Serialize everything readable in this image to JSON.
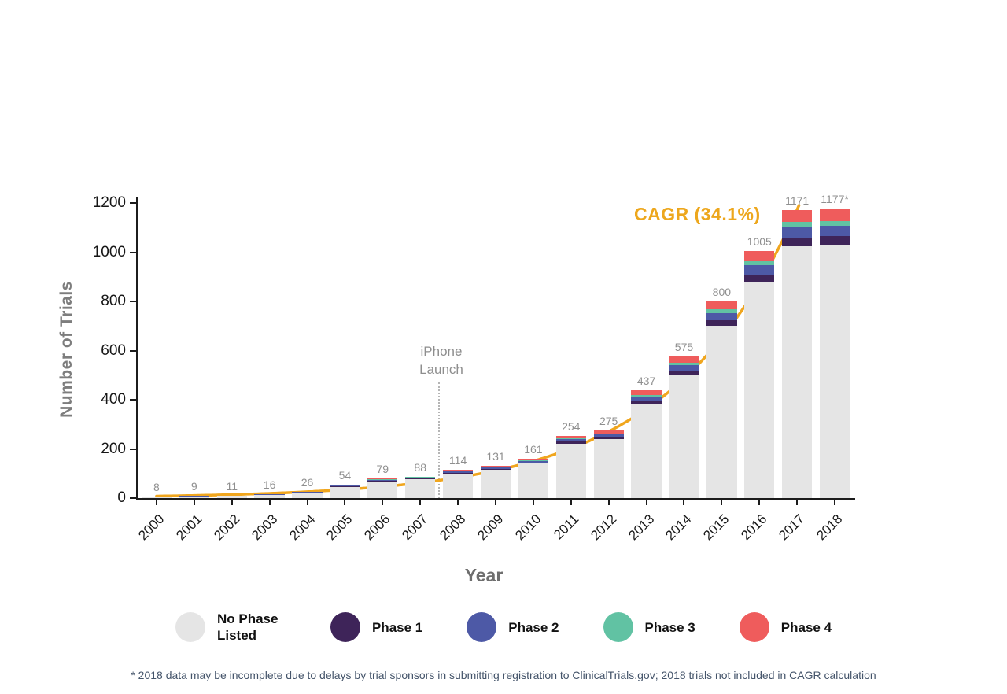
{
  "chart_data": {
    "type": "bar",
    "stacked": true,
    "title": "",
    "xlabel": "Year",
    "ylabel": "Number of Trials",
    "ylim": [
      0,
      1200
    ],
    "yticks": [
      0,
      200,
      400,
      600,
      800,
      1000,
      1200
    ],
    "grid": false,
    "legend_position": "bottom",
    "categories": [
      "2000",
      "2001",
      "2002",
      "2003",
      "2004",
      "2005",
      "2006",
      "2007",
      "2008",
      "2009",
      "2010",
      "2011",
      "2012",
      "2013",
      "2014",
      "2015",
      "2016",
      "2017",
      "2018"
    ],
    "totals": [
      8,
      9,
      11,
      16,
      26,
      54,
      79,
      88,
      114,
      131,
      161,
      254,
      275,
      437,
      575,
      800,
      1005,
      1171,
      1177
    ],
    "total_labels": [
      "8",
      "9",
      "11",
      "16",
      "26",
      "54",
      "79",
      "88",
      "114",
      "131",
      "161",
      "254",
      "275",
      "437",
      "575",
      "800",
      "1005",
      "1171",
      "1177*"
    ],
    "series": [
      {
        "name": "No Phase Listed",
        "color": "#e5e5e5",
        "values": [
          6,
          7,
          9,
          13,
          22,
          46,
          68,
          76,
          99,
          114,
          140,
          221,
          240,
          382,
          503,
          700,
          880,
          1025,
          1030
        ]
      },
      {
        "name": "Phase 1",
        "color": "#3e2459",
        "values": [
          1,
          1,
          1,
          1,
          1,
          2,
          3,
          3,
          4,
          4,
          5,
          8,
          8,
          13,
          17,
          24,
          30,
          35,
          35
        ]
      },
      {
        "name": "Phase 2",
        "color": "#4d59a6",
        "values": [
          1,
          1,
          1,
          1,
          2,
          3,
          4,
          4,
          5,
          6,
          7,
          10,
          11,
          16,
          21,
          29,
          36,
          42,
          42
        ]
      },
      {
        "name": "Phase 3",
        "color": "#61c2a3",
        "values": [
          0,
          0,
          0,
          1,
          1,
          1,
          1,
          2,
          2,
          3,
          3,
          5,
          5,
          8,
          10,
          14,
          18,
          20,
          20
        ]
      },
      {
        "name": "Phase 4",
        "color": "#ef5c5c",
        "values": [
          0,
          0,
          0,
          0,
          0,
          2,
          3,
          3,
          4,
          4,
          6,
          10,
          11,
          18,
          24,
          33,
          41,
          49,
          50
        ]
      }
    ],
    "trendline": {
      "label": "CAGR (34.1%)",
      "color": "#f0a61e",
      "start_value": 8,
      "growth_rate": 1.341
    },
    "annotation": {
      "line1": "iPhone",
      "line2": "Launch",
      "between_years": [
        "2007",
        "2008"
      ]
    }
  },
  "footnote": "* 2018 data may be incomplete due to delays by trial sponsors in submitting registration to ClinicalTrials.gov; 2018 trials not included in CAGR calculation"
}
